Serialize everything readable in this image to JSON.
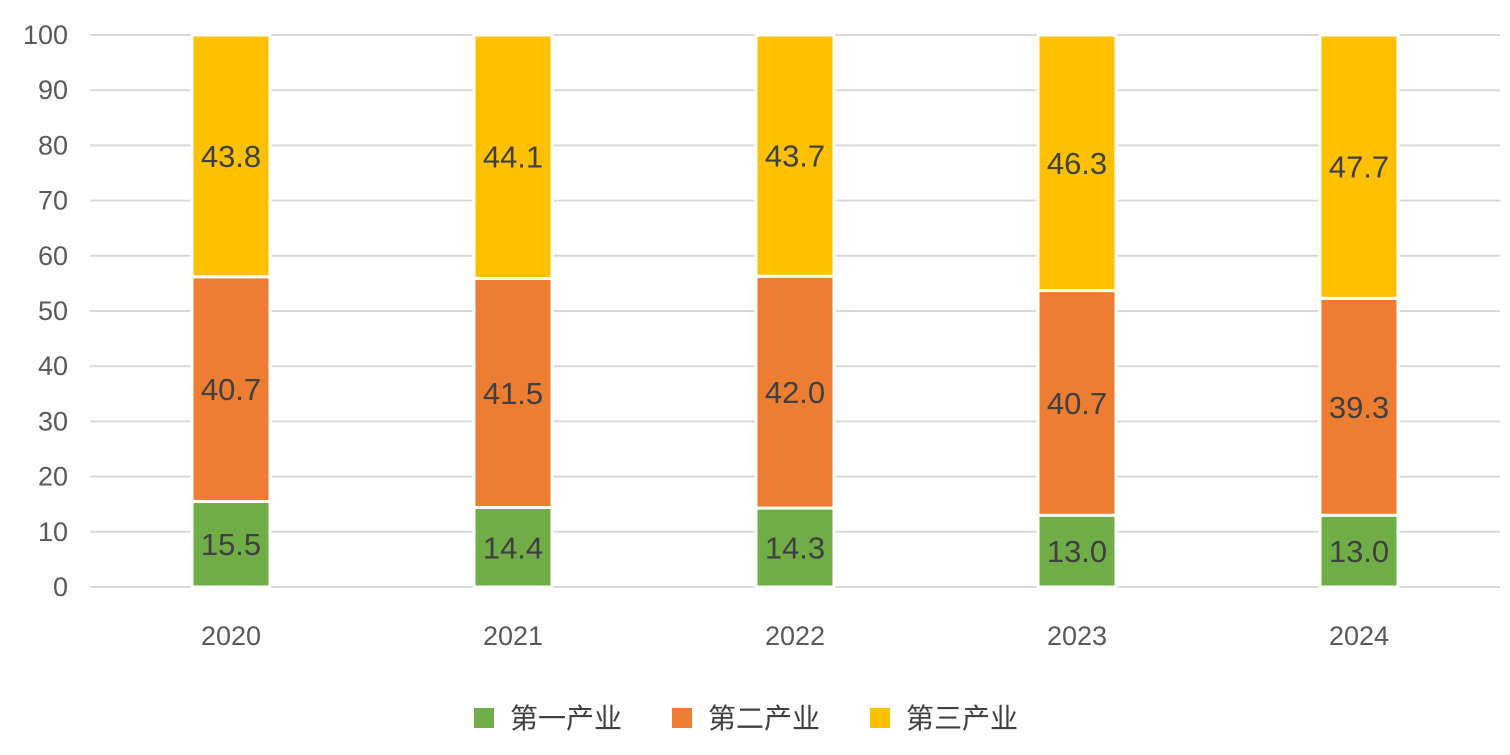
{
  "chart_data": {
    "type": "bar",
    "stacked": true,
    "title": "",
    "xlabel": "",
    "ylabel": "",
    "categories": [
      "2020",
      "2021",
      "2022",
      "2023",
      "2024"
    ],
    "ylim": [
      0,
      100
    ],
    "yticks": [
      0,
      10,
      20,
      30,
      40,
      50,
      60,
      70,
      80,
      90,
      100
    ],
    "grid": true,
    "legend_position": "bottom",
    "series": [
      {
        "name": "第一产业",
        "color": "#70ad47",
        "values": [
          15.5,
          14.4,
          14.3,
          13.0,
          13.0
        ],
        "labels": [
          "15.5",
          "14.4",
          "14.3",
          "13.0",
          "13.0"
        ]
      },
      {
        "name": "第二产业",
        "color": "#ed7d31",
        "values": [
          40.7,
          41.5,
          42.0,
          40.7,
          39.3
        ],
        "labels": [
          "40.7",
          "41.5",
          "42.0",
          "40.7",
          "39.3"
        ]
      },
      {
        "name": "第三产业",
        "color": "#ffc000",
        "values": [
          43.8,
          44.1,
          43.7,
          46.3,
          47.7
        ],
        "labels": [
          "43.8",
          "44.1",
          "43.7",
          "46.3",
          "47.7"
        ]
      }
    ]
  }
}
